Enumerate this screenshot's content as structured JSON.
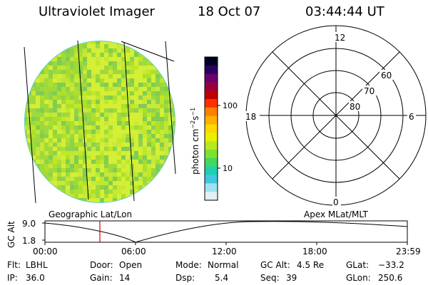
{
  "header": {
    "title": "Ultraviolet Imager",
    "date": "18 Oct 07",
    "time": "03:44:44 UT"
  },
  "globe": {
    "label": "Geographic Lat/Lon",
    "colors": [
      "#aee02b",
      "#bfe82a",
      "#d4ef35",
      "#9fda3a",
      "#8fd24a",
      "#c8e83a",
      "#7fcd52"
    ],
    "edge_color": "#5fd0c0"
  },
  "colorbar": {
    "ticks": [
      "100",
      "10"
    ],
    "colors": [
      "#000020",
      "#2a0060",
      "#6a0070",
      "#9a0040",
      "#c00000",
      "#ff3000",
      "#ff8000",
      "#ffb000",
      "#ffd800",
      "#e8f000",
      "#b8e820",
      "#80e030",
      "#40d860",
      "#20d0b0",
      "#40c8e0",
      "#a0e0f0",
      "#e0f0f4"
    ]
  },
  "polar": {
    "label": "Apex MLat/MLT",
    "mlt_12": "12",
    "mlt_18": "18",
    "mlt_6": "6",
    "mlt_0": "0",
    "lat_60": "60",
    "lat_70": "70",
    "lat_80": "80"
  },
  "alt_plot": {
    "y_label": "GC Alt",
    "y_top": "9.0",
    "y_bottom": "1.8",
    "x_ticks": [
      "00:00",
      "06:00",
      "12:00",
      "18:00",
      "23:59"
    ],
    "marker_color": "#e00000"
  },
  "status": {
    "flt_label": "Flt:",
    "flt_value": "LBHL",
    "door_label": "Door:",
    "door_value": "Open",
    "mode_label": "Mode:",
    "mode_value": "Normal",
    "gcalt_label": "GC Alt:",
    "gcalt_value": "4.5 Re",
    "glat_label": "GLat:",
    "glat_value": "−33.2",
    "ip_label": "IP:",
    "ip_value": "36.0",
    "gain_label": "Gain:",
    "gain_value": "14",
    "dsp_label": "Dsp:",
    "dsp_value": "5.4",
    "seq_label": "Seq:",
    "seq_value": "39",
    "glon_label": "GLon:",
    "glon_value": "250.6"
  }
}
